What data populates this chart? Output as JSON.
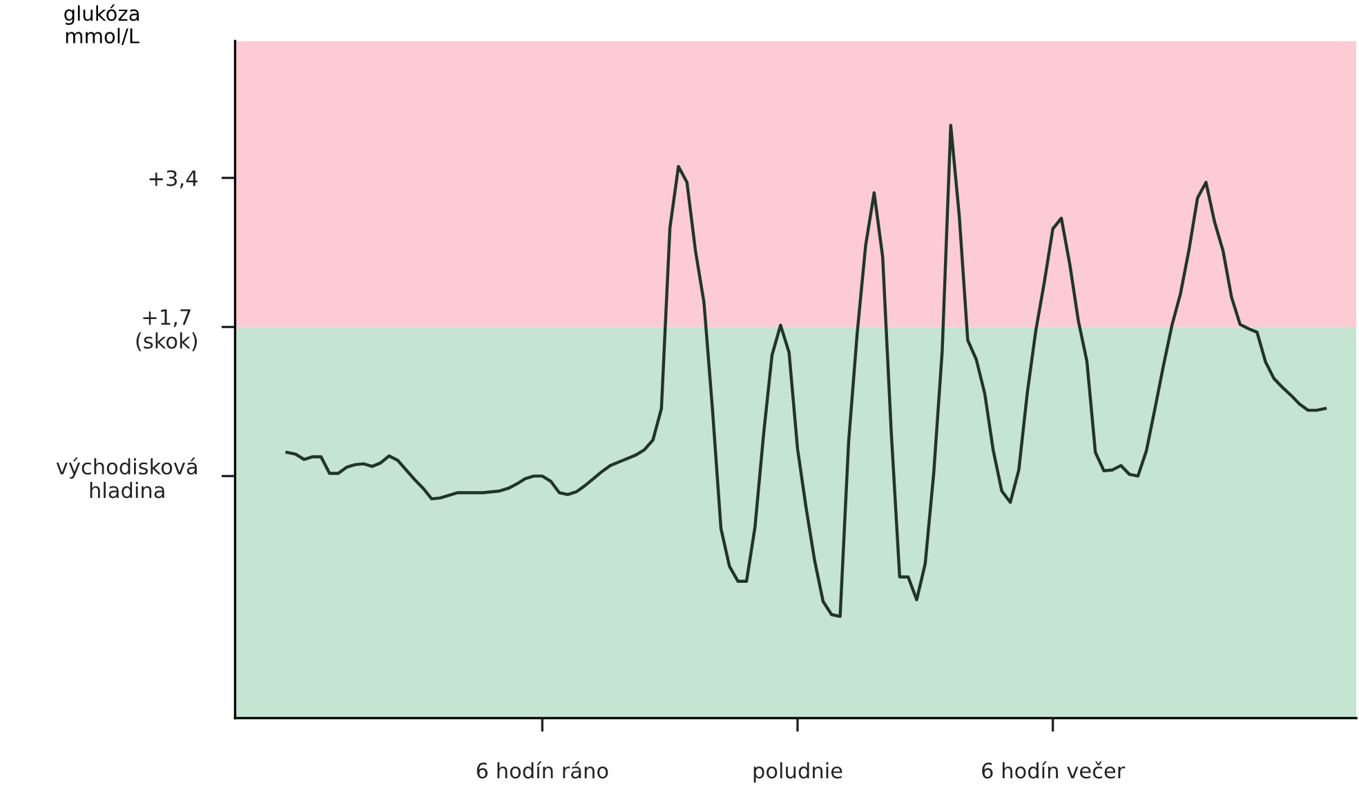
{
  "chart_data": {
    "type": "line",
    "ylabel": "glukóza\nmmol/L",
    "ylim": [
      -2.76,
      4.96
    ],
    "categories": [
      null,
      null,
      null,
      null,
      null,
      null,
      null,
      null,
      null,
      null,
      null,
      null,
      null,
      null,
      null,
      null,
      null,
      null,
      null,
      null,
      null,
      null,
      null,
      null,
      null,
      null,
      null,
      null,
      null,
      null,
      "6 hodín ráno",
      null,
      null,
      null,
      null,
      null,
      null,
      null,
      null,
      null,
      null,
      null,
      null,
      null,
      null,
      null,
      null,
      null,
      null,
      null,
      null,
      null,
      null,
      null,
      null,
      null,
      null,
      null,
      null,
      null,
      "poludnie",
      null,
      null,
      null,
      null,
      null,
      null,
      null,
      null,
      null,
      null,
      null,
      null,
      null,
      null,
      null,
      null,
      null,
      null,
      null,
      null,
      null,
      null,
      null,
      null,
      null,
      null,
      null,
      null,
      null,
      "6 hodín večer",
      null,
      null,
      null,
      null,
      null,
      null,
      null,
      null,
      null,
      null,
      null,
      null,
      null,
      null,
      null,
      null,
      null,
      null,
      null,
      null,
      null,
      null,
      null,
      null,
      null,
      null,
      null,
      null,
      null,
      null,
      null,
      null
    ],
    "yticks": [
      {
        "value": 0,
        "label": "východisková\nhladina"
      },
      {
        "value": 1.7,
        "label": "+1,7\n(skok)"
      },
      {
        "value": 3.4,
        "label": "+3,4"
      }
    ],
    "bands": [
      {
        "axis": "y",
        "from": -2.76,
        "to": 1.7,
        "color": "#c5e4d1"
      },
      {
        "axis": "y",
        "from": 1.7,
        "to": 4.96,
        "color": "#fccbd3"
      }
    ],
    "grid": false,
    "legend": false,
    "marker": "none",
    "line_style": "solid",
    "series": [
      {
        "color": "#203528",
        "values": [
          0.27,
          0.25,
          0.19,
          0.22,
          0.22,
          0.03,
          0.03,
          0.1,
          0.13,
          0.14,
          0.11,
          0.15,
          0.23,
          0.18,
          0.07,
          -0.04,
          -0.14,
          -0.26,
          -0.25,
          -0.22,
          -0.19,
          -0.19,
          -0.19,
          -0.19,
          -0.18,
          -0.17,
          -0.14,
          -0.09,
          -0.03,
          0.0,
          0.0,
          -0.06,
          -0.19,
          -0.21,
          -0.18,
          -0.11,
          -0.03,
          0.05,
          0.12,
          0.16,
          0.2,
          0.24,
          0.3,
          0.41,
          0.77,
          2.83,
          3.53,
          3.35,
          2.57,
          1.98,
          0.76,
          -0.6,
          -1.03,
          -1.2,
          -1.2,
          -0.58,
          0.47,
          1.38,
          1.72,
          1.41,
          0.31,
          -0.36,
          -0.96,
          -1.43,
          -1.58,
          -1.6,
          0.39,
          1.62,
          2.63,
          3.23,
          2.5,
          0.52,
          -1.15,
          -1.15,
          -1.41,
          -1.0,
          0.03,
          1.43,
          4.0,
          2.97,
          1.55,
          1.33,
          0.94,
          0.29,
          -0.17,
          -0.3,
          0.07,
          0.95,
          1.66,
          2.21,
          2.82,
          2.94,
          2.41,
          1.77,
          1.31,
          0.27,
          0.06,
          0.07,
          0.12,
          0.02,
          0.0,
          0.29,
          0.77,
          1.26,
          1.72,
          2.08,
          2.58,
          3.17,
          3.35,
          2.9,
          2.57,
          2.04,
          1.73,
          1.68,
          1.64,
          1.3,
          1.11,
          1.01,
          0.92,
          0.82,
          0.75,
          0.75,
          0.77
        ]
      }
    ]
  }
}
